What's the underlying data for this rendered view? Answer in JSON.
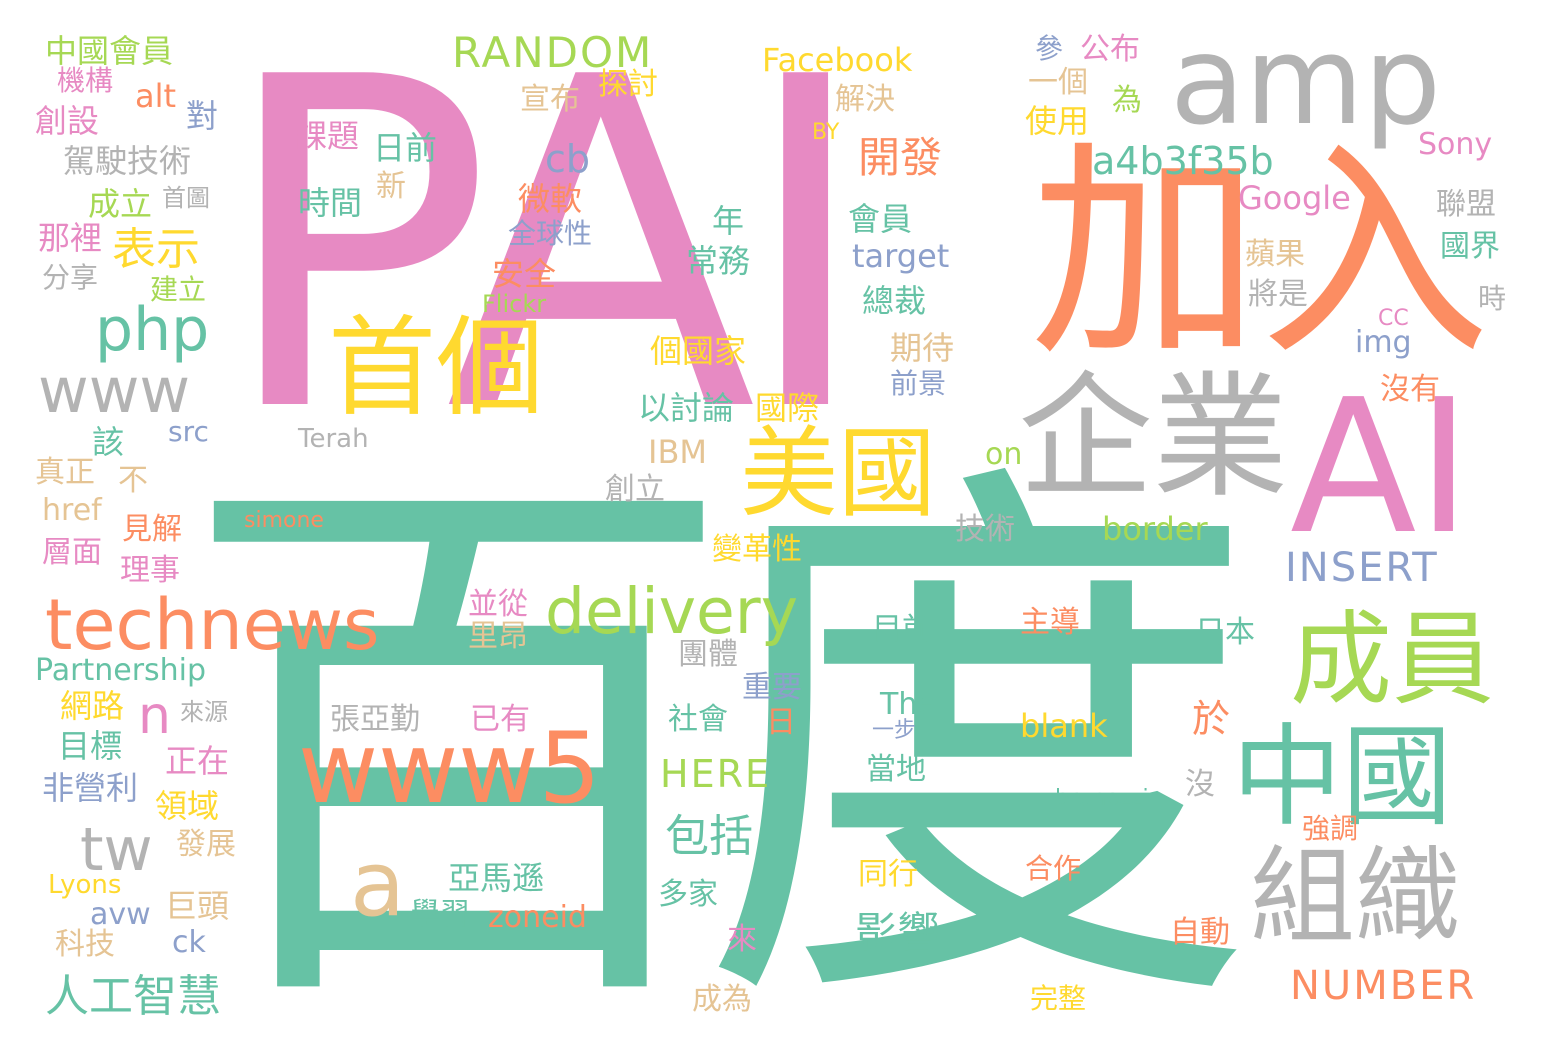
{
  "colors": {
    "pink": "#e78ac3",
    "teal": "#66c2a5",
    "orange": "#fc8d62",
    "gray": "#b3b3b3",
    "yellow": "#ffd92f",
    "green": "#a6d854",
    "blue": "#8da0cb",
    "tan": "#e5c494"
  },
  "words": [
    {
      "id": "PAI",
      "text": "PAI",
      "color": "pink"
    },
    {
      "id": "baidu",
      "text": "百度",
      "color": "teal"
    },
    {
      "id": "amp",
      "text": "amp",
      "color": "gray"
    },
    {
      "id": "jiaru",
      "text": "加入",
      "color": "orange"
    },
    {
      "id": "AI",
      "text": "AI",
      "color": "pink"
    },
    {
      "id": "qiye",
      "text": "企業",
      "color": "gray"
    },
    {
      "id": "shouge",
      "text": "首個",
      "color": "yellow"
    },
    {
      "id": "meiguo",
      "text": "美國",
      "color": "yellow"
    },
    {
      "id": "chengyuan",
      "text": "成員",
      "color": "green"
    },
    {
      "id": "zhongguo",
      "text": "中國",
      "color": "teal"
    },
    {
      "id": "zuzhi",
      "text": "組織",
      "color": "gray"
    },
    {
      "id": "www5",
      "text": "www5",
      "color": "orange"
    },
    {
      "id": "a",
      "text": "a",
      "color": "tan"
    },
    {
      "id": "technews",
      "text": "technews",
      "color": "orange"
    },
    {
      "id": "delivery",
      "text": "delivery",
      "color": "green"
    },
    {
      "id": "www",
      "text": "www",
      "color": "gray"
    },
    {
      "id": "php",
      "text": "php",
      "color": "teal"
    },
    {
      "id": "tw",
      "text": "tw",
      "color": "gray"
    },
    {
      "id": "n",
      "text": "n",
      "color": "pink"
    },
    {
      "id": "a4b3f35b",
      "text": "a4b3f35b",
      "color": "teal"
    },
    {
      "id": "RANDOM",
      "text": "RANDOM",
      "color": "green"
    },
    {
      "id": "Facebook",
      "text": "Facebook",
      "color": "yellow"
    },
    {
      "id": "INSERT",
      "text": "INSERT",
      "color": "blue"
    },
    {
      "id": "NUMBER",
      "text": "NUMBER",
      "color": "orange"
    },
    {
      "id": "HERE",
      "text": "HERE",
      "color": "green"
    },
    {
      "id": "kaifa",
      "text": "開發",
      "color": "orange"
    },
    {
      "id": "biaoshi",
      "text": "表示",
      "color": "yellow"
    },
    {
      "id": "cb",
      "text": "cb",
      "color": "blue"
    },
    {
      "id": "rengong",
      "text": "人工智慧",
      "color": "teal"
    },
    {
      "id": "yingxiang",
      "text": "影響",
      "color": "teal"
    },
    {
      "id": "baokuo",
      "text": "包括",
      "color": "teal"
    },
    {
      "id": "Google",
      "text": "Google",
      "color": "pink"
    },
    {
      "id": "Sony",
      "text": "Sony",
      "color": "pink"
    },
    {
      "id": "Partnership",
      "text": "Partnership",
      "color": "teal"
    },
    {
      "id": "zoneid",
      "text": "zoneid",
      "color": "orange"
    },
    {
      "id": "border",
      "text": "border",
      "color": "green"
    },
    {
      "id": "blank",
      "text": "blank",
      "color": "yellow"
    },
    {
      "id": "target",
      "text": "target",
      "color": "blue"
    },
    {
      "id": "IBM",
      "text": "IBM",
      "color": "tan"
    },
    {
      "id": "yamaxun",
      "text": "亞馬遜",
      "color": "teal"
    },
    {
      "id": "zhongguohuiyuan",
      "text": "中國會員",
      "color": "green"
    },
    {
      "id": "jigou",
      "text": "機構",
      "color": "pink"
    },
    {
      "id": "alt",
      "text": "alt",
      "color": "orange"
    },
    {
      "id": "dui",
      "text": "對",
      "color": "blue"
    },
    {
      "id": "chuangshe",
      "text": "創設",
      "color": "pink"
    },
    {
      "id": "jiashi",
      "text": "駕駛技術",
      "color": "gray"
    },
    {
      "id": "chengli",
      "text": "成立",
      "color": "green"
    },
    {
      "id": "shoutu",
      "text": "首圖",
      "color": "gray"
    },
    {
      "id": "nali",
      "text": "那裡",
      "color": "pink"
    },
    {
      "id": "fenxiang",
      "text": "分享",
      "color": "gray"
    },
    {
      "id": "jianli",
      "text": "建立",
      "color": "green"
    },
    {
      "id": "keti",
      "text": "課題",
      "color": "pink"
    },
    {
      "id": "riqian",
      "text": "日前",
      "color": "teal"
    },
    {
      "id": "xin",
      "text": "新",
      "color": "tan"
    },
    {
      "id": "shijian",
      "text": "時間",
      "color": "teal"
    },
    {
      "id": "weiruan",
      "text": "微軟",
      "color": "orange"
    },
    {
      "id": "quanqiu",
      "text": "全球性",
      "color": "blue"
    },
    {
      "id": "anquan",
      "text": "安全",
      "color": "orange"
    },
    {
      "id": "Flickr",
      "text": "Flickr",
      "color": "green"
    },
    {
      "id": "xuanbu",
      "text": "宣布",
      "color": "tan"
    },
    {
      "id": "tantao",
      "text": "探討",
      "color": "yellow"
    },
    {
      "id": "jiejue",
      "text": "解決",
      "color": "tan"
    },
    {
      "id": "BY",
      "text": "BY",
      "color": "yellow"
    },
    {
      "id": "nian",
      "text": "年",
      "color": "teal"
    },
    {
      "id": "changwu",
      "text": "常務",
      "color": "teal"
    },
    {
      "id": "huiyuan",
      "text": "會員",
      "color": "teal"
    },
    {
      "id": "zongcai",
      "text": "總裁",
      "color": "teal"
    },
    {
      "id": "qidai",
      "text": "期待",
      "color": "tan"
    },
    {
      "id": "qianjing",
      "text": "前景",
      "color": "blue"
    },
    {
      "id": "geguojia",
      "text": "個國家",
      "color": "yellow"
    },
    {
      "id": "yitaolun",
      "text": "以討論",
      "color": "teal"
    },
    {
      "id": "guoji",
      "text": "國際",
      "color": "yellow"
    },
    {
      "id": "can",
      "text": "參",
      "color": "blue"
    },
    {
      "id": "gongbu",
      "text": "公布",
      "color": "pink"
    },
    {
      "id": "yige",
      "text": "一個",
      "color": "tan"
    },
    {
      "id": "wei",
      "text": "為",
      "color": "green"
    },
    {
      "id": "shiyong",
      "text": "使用",
      "color": "yellow"
    },
    {
      "id": "lianmeng",
      "text": "聯盟",
      "color": "gray"
    },
    {
      "id": "guojie",
      "text": "國界",
      "color": "teal"
    },
    {
      "id": "pingguo",
      "text": "蘋果",
      "color": "tan"
    },
    {
      "id": "jiangshi",
      "text": "將是",
      "color": "gray"
    },
    {
      "id": "shi",
      "text": "時",
      "color": "gray"
    },
    {
      "id": "CC",
      "text": "CC",
      "color": "pink"
    },
    {
      "id": "img",
      "text": "img",
      "color": "blue"
    },
    {
      "id": "meiyou",
      "text": "沒有",
      "color": "orange"
    },
    {
      "id": "gai",
      "text": "該",
      "color": "teal"
    },
    {
      "id": "src",
      "text": "src",
      "color": "blue"
    },
    {
      "id": "Terah",
      "text": "Terah",
      "color": "gray"
    },
    {
      "id": "zhenzheng",
      "text": "真正",
      "color": "tan"
    },
    {
      "id": "bu",
      "text": "不",
      "color": "tan"
    },
    {
      "id": "href",
      "text": "href",
      "color": "tan"
    },
    {
      "id": "jianjie",
      "text": "見解",
      "color": "orange"
    },
    {
      "id": "cengmian",
      "text": "層面",
      "color": "pink"
    },
    {
      "id": "lishi",
      "text": "理事",
      "color": "pink"
    },
    {
      "id": "simone",
      "text": "simone",
      "color": "orange"
    },
    {
      "id": "chuangli",
      "text": "創立",
      "color": "gray"
    },
    {
      "id": "on",
      "text": "on",
      "color": "green"
    },
    {
      "id": "jishu",
      "text": "技術",
      "color": "gray"
    },
    {
      "id": "biangexing",
      "text": "變革性",
      "color": "yellow"
    },
    {
      "id": "bingcong",
      "text": "並從",
      "color": "pink"
    },
    {
      "id": "liang",
      "text": "里昂",
      "color": "tan"
    },
    {
      "id": "tuanti",
      "text": "團體",
      "color": "gray"
    },
    {
      "id": "zhangyaqin",
      "text": "張亞勤",
      "color": "gray"
    },
    {
      "id": "yiyou",
      "text": "已有",
      "color": "pink"
    },
    {
      "id": "wanglu",
      "text": "網路",
      "color": "yellow"
    },
    {
      "id": "laiyuan",
      "text": "來源",
      "color": "gray"
    },
    {
      "id": "mubiao",
      "text": "目標",
      "color": "teal"
    },
    {
      "id": "zhengzai",
      "text": "正在",
      "color": "pink"
    },
    {
      "id": "feiyingli",
      "text": "非營利",
      "color": "blue"
    },
    {
      "id": "lingyu",
      "text": "領域",
      "color": "yellow"
    },
    {
      "id": "fazhan",
      "text": "發展",
      "color": "tan"
    },
    {
      "id": "Lyons",
      "text": "Lyons",
      "color": "yellow"
    },
    {
      "id": "jutou",
      "text": "巨頭",
      "color": "tan"
    },
    {
      "id": "avw",
      "text": "avw",
      "color": "blue"
    },
    {
      "id": "ck",
      "text": "ck",
      "color": "blue"
    },
    {
      "id": "keji",
      "text": "科技",
      "color": "tan"
    },
    {
      "id": "xuexi",
      "text": "學習",
      "color": "teal"
    },
    {
      "id": "duojia",
      "text": "多家",
      "color": "teal"
    },
    {
      "id": "lai",
      "text": "來",
      "color": "pink"
    },
    {
      "id": "chengwei",
      "text": "成為",
      "color": "tan"
    },
    {
      "id": "shehui",
      "text": "社會",
      "color": "teal"
    },
    {
      "id": "zhongyao",
      "text": "重要",
      "color": "blue"
    },
    {
      "id": "ri",
      "text": "日",
      "color": "orange"
    },
    {
      "id": "mu_qian",
      "text": "目前",
      "color": "teal"
    },
    {
      "id": "The",
      "text": "The",
      "color": "teal"
    },
    {
      "id": "yibu",
      "text": "一步",
      "color": "blue"
    },
    {
      "id": "dangdi",
      "text": "當地",
      "color": "teal"
    },
    {
      "id": "tongxing",
      "text": "同行",
      "color": "yellow"
    },
    {
      "id": "zhudao",
      "text": "主導",
      "color": "orange"
    },
    {
      "id": "riben",
      "text": "日本",
      "color": "teal"
    },
    {
      "id": "yu",
      "text": "於",
      "color": "orange"
    },
    {
      "id": "mei",
      "text": "沒",
      "color": "gray"
    },
    {
      "id": "brunozzi",
      "text": "brunozzi",
      "color": "teal"
    },
    {
      "id": "qiangdiao",
      "text": "強調",
      "color": "orange"
    },
    {
      "id": "hezuo",
      "text": "合作",
      "color": "orange"
    },
    {
      "id": "zidong",
      "text": "自動",
      "color": "orange"
    },
    {
      "id": "wanzheng",
      "text": "完整",
      "color": "yellow"
    }
  ]
}
